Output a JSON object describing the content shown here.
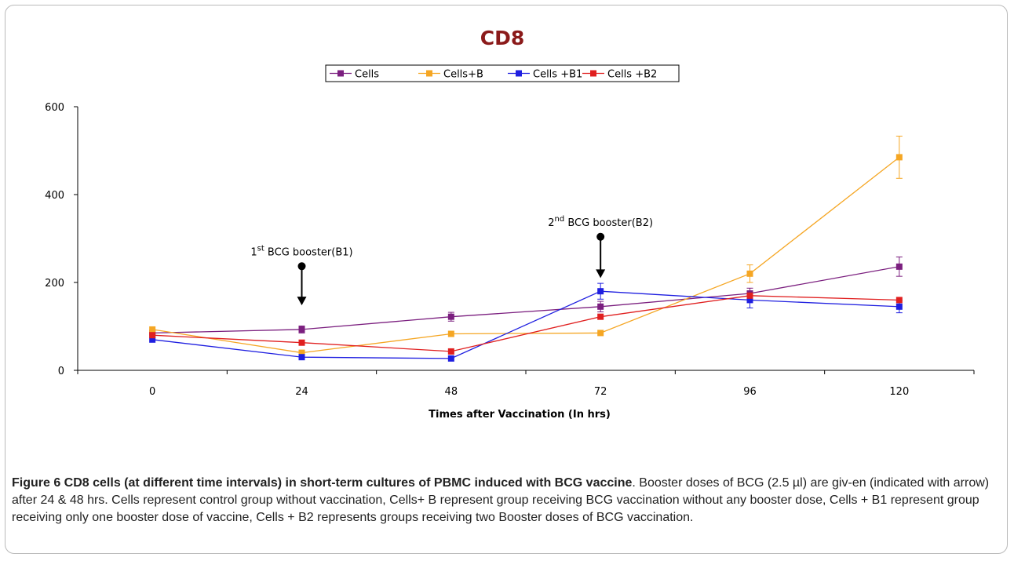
{
  "chart_data": {
    "type": "line",
    "title": "CD8",
    "xlabel": "Times after Vaccination (In hrs)",
    "ylabel": "",
    "x": [
      0,
      24,
      48,
      72,
      96,
      120
    ],
    "x_tick_labels": [
      "0",
      "24",
      "48",
      "72",
      "96",
      "120"
    ],
    "y_tick_labels": [
      "0",
      "200",
      "400",
      "600"
    ],
    "y_ticks": [
      0,
      200,
      400,
      600
    ],
    "ylim": [
      0,
      600
    ],
    "grid": false,
    "legend_position": "top-center",
    "series": [
      {
        "name": "Cells",
        "color": "#7b1f7f",
        "values": [
          85,
          93,
          122,
          145,
          175,
          236
        ],
        "errors": [
          0,
          8,
          10,
          12,
          12,
          22
        ]
      },
      {
        "name": "Cells+B",
        "color": "#f5a623",
        "values": [
          93,
          40,
          83,
          85,
          220,
          485
        ],
        "errors": [
          0,
          0,
          0,
          0,
          20,
          48
        ]
      },
      {
        "name": "Cells +B1",
        "color": "#1f1fe0",
        "values": [
          70,
          30,
          27,
          180,
          160,
          145
        ],
        "errors": [
          0,
          0,
          0,
          18,
          18,
          14
        ]
      },
      {
        "name": "Cells +B2",
        "color": "#e01f1f",
        "values": [
          80,
          63,
          43,
          122,
          170,
          160
        ],
        "errors": [
          0,
          0,
          0,
          0,
          0,
          0
        ]
      }
    ],
    "annotations": [
      {
        "base": "1",
        "sup": "st",
        "text": " BCG booster(B1)",
        "x": 24,
        "y_arrow_top": 237,
        "y_arrow_tip": 148
      },
      {
        "base": "2",
        "sup": "nd",
        "text": " BCG booster(B2)",
        "x": 72,
        "y_arrow_top": 304,
        "y_arrow_tip": 210
      }
    ]
  },
  "caption": {
    "label": "Figure 6 CD8 cells (at different time intervals) in short-term cultures of PBMC induced with BCG vaccine",
    "text": ". Booster doses of BCG (2.5 µl) are giv-en (indicated with arrow) after 24 & 48 hrs. Cells represent control group without vaccination, Cells+ B represent group receiving BCG vaccination without any booster dose, Cells + B1 represent group receiving only one booster dose of vaccine, Cells + B2 represents groups receiving two Booster doses of BCG vaccination."
  }
}
